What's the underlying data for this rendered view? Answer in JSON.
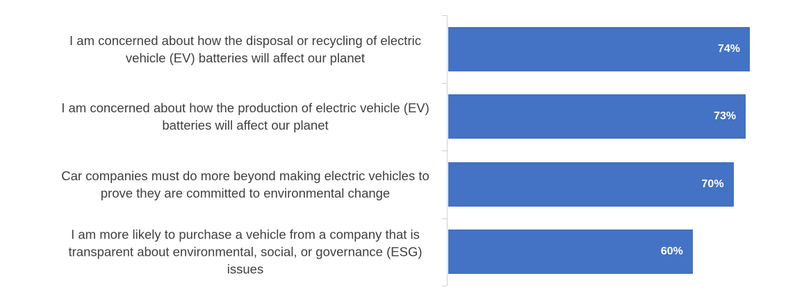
{
  "chart_data": {
    "type": "bar",
    "orientation": "horizontal",
    "categories": [
      "I am concerned about how the disposal or recycling of electric vehicle (EV) batteries will affect our planet",
      "I am concerned about how the production of electric vehicle (EV) batteries will affect our planet",
      "Car companies must do more beyond making electric vehicles to prove they are committed to environmental change",
      "I am more likely to purchase a vehicle from a company that is transparent about environmental, social, or governance (ESG) issues"
    ],
    "values": [
      74,
      73,
      70,
      60
    ],
    "value_labels": [
      "74%",
      "73%",
      "70%",
      "60%"
    ],
    "color": "#4472c4"
  }
}
